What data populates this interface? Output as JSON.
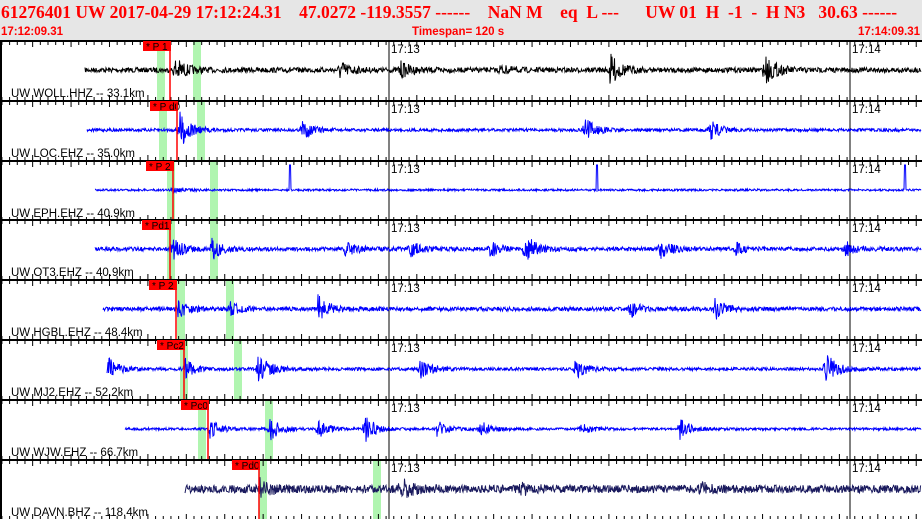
{
  "header": {
    "title": "61276401 UW 2017-04-29 17:12:24.31    47.0272 -119.3557 ------    NaN M    eq  L ---      UW 01  H  -1  -  H N3   30.63 ------",
    "start_time": "17:12:09.31",
    "timespan": "Timespan= 120 s",
    "end_time": "17:14:09.31"
  },
  "minute_labels": [
    "17:13",
    "17:14"
  ],
  "colors": {
    "header_bg": "#e6e6e6",
    "header_text": "#ff0000",
    "pick": "#ff0000",
    "window": "#b0f5b0",
    "trace_default": "#0000ff"
  },
  "traces": [
    {
      "label": "UW WOLL.HHZ -- 33.1km",
      "pick": "* P 1",
      "color": "#000000"
    },
    {
      "label": "UW LOC.EHZ -- 35.0km",
      "pick": "* P d0",
      "color": "#0000ff"
    },
    {
      "label": "UW EPH.EHZ -- 40.9km",
      "pick": "* P 2",
      "color": "#0000ff"
    },
    {
      "label": "UW OT3.EHZ -- 40.9km",
      "pick": "* Pd1",
      "color": "#0000ff"
    },
    {
      "label": "UW HGBL.EHZ -- 48.4km",
      "pick": "* P 2",
      "color": "#0000ff"
    },
    {
      "label": "UW MJ2.EHZ -- 52.2km",
      "pick": "* Pc2",
      "color": "#0000ff"
    },
    {
      "label": "UW WJW.EHZ -- 66.7km",
      "pick": "* Pc0",
      "color": "#0000ff"
    },
    {
      "label": "UW DAVN.BHZ -- 118.4km",
      "pick": "* Pd0",
      "color": "#1a1a5e"
    }
  ]
}
